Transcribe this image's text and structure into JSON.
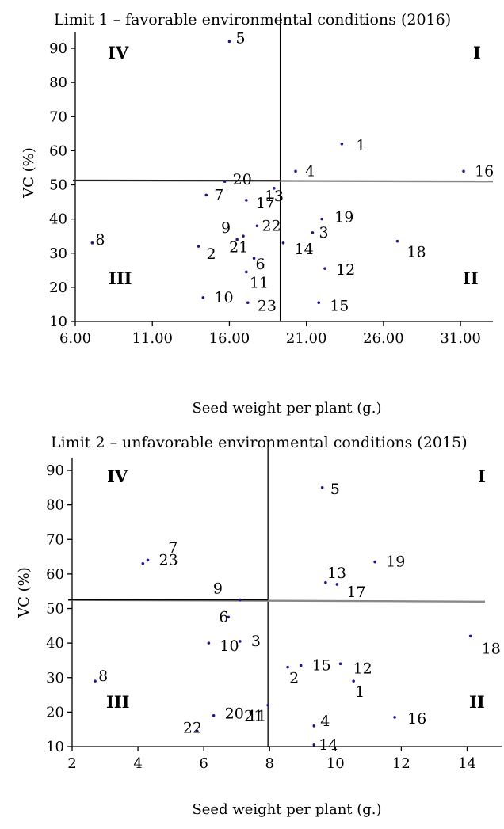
{
  "chart_data": [
    {
      "type": "scatter",
      "title": "Limit 1 – favorable environmental conditions (2016)",
      "xlabel": "Seed weight per plant (g.)",
      "ylabel": "VC (%)",
      "xlim": [
        6.0,
        33.0
      ],
      "ylim": [
        10,
        95
      ],
      "x_ticks": [
        6,
        11,
        16,
        21,
        26,
        31
      ],
      "x_tick_labels": [
        "6.00",
        "11.00",
        "16.00",
        "21.00",
        "26.00",
        "31.00"
      ],
      "y_ticks": [
        10,
        20,
        30,
        40,
        50,
        60,
        70,
        80,
        90
      ],
      "y_tick_labels": [
        "10",
        "20",
        "30",
        "40",
        "50",
        "60",
        "70",
        "80",
        "90"
      ],
      "vline_x": 19.3,
      "hline_y": [
        51.3,
        51.0
      ],
      "quadrants": [
        "I",
        "II",
        "III",
        "IV"
      ],
      "points": [
        {
          "label": "1",
          "x": 23.3,
          "y": 62.0
        },
        {
          "label": "2",
          "x": 14.0,
          "y": 32.0
        },
        {
          "label": "3",
          "x": 21.4,
          "y": 36.0
        },
        {
          "label": "4",
          "x": 20.3,
          "y": 54.0
        },
        {
          "label": "5",
          "x": 16.0,
          "y": 92.0
        },
        {
          "label": "6",
          "x": 17.6,
          "y": 28.5
        },
        {
          "label": "7",
          "x": 14.5,
          "y": 47.0
        },
        {
          "label": "8",
          "x": 7.1,
          "y": 33.0
        },
        {
          "label": "9",
          "x": 16.9,
          "y": 35.0
        },
        {
          "label": "10",
          "x": 14.3,
          "y": 17.0
        },
        {
          "label": "11",
          "x": 17.1,
          "y": 24.5
        },
        {
          "label": "12",
          "x": 22.2,
          "y": 25.5
        },
        {
          "label": "13",
          "x": 18.9,
          "y": 49.0
        },
        {
          "label": "14",
          "x": 19.5,
          "y": 33.0
        },
        {
          "label": "15",
          "x": 21.8,
          "y": 15.5
        },
        {
          "label": "16",
          "x": 31.2,
          "y": 54.0
        },
        {
          "label": "17",
          "x": 17.1,
          "y": 45.5
        },
        {
          "label": "18",
          "x": 26.9,
          "y": 33.5
        },
        {
          "label": "19",
          "x": 22.0,
          "y": 40.0
        },
        {
          "label": "20",
          "x": 15.7,
          "y": 51.0
        },
        {
          "label": "21",
          "x": 16.5,
          "y": 34.0
        },
        {
          "label": "22",
          "x": 17.8,
          "y": 38.0
        },
        {
          "label": "23",
          "x": 17.2,
          "y": 15.5
        }
      ]
    },
    {
      "type": "scatter",
      "title": "Limit 2 – unfavorable environmental conditions (2015)",
      "xlabel": "Seed weight per plant (g.)",
      "ylabel": "VC (%)",
      "xlim": [
        2.0,
        15.0
      ],
      "ylim": [
        10,
        95
      ],
      "x_ticks": [
        2,
        4,
        6,
        8,
        10,
        12,
        14
      ],
      "x_tick_labels": [
        "2",
        "4",
        "6",
        "8",
        "10",
        "12",
        "14"
      ],
      "y_ticks": [
        10,
        20,
        30,
        40,
        50,
        60,
        70,
        80,
        90
      ],
      "y_tick_labels": [
        "10",
        "20",
        "30",
        "40",
        "50",
        "60",
        "70",
        "80",
        "90"
      ],
      "vline_x": 7.95,
      "hline_y": [
        52.5,
        52.0
      ],
      "quadrants": [
        "I",
        "II",
        "III",
        "IV"
      ],
      "points": [
        {
          "label": "1",
          "x": 10.55,
          "y": 29.0
        },
        {
          "label": "2",
          "x": 8.55,
          "y": 33.0
        },
        {
          "label": "3",
          "x": 7.1,
          "y": 40.5
        },
        {
          "label": "4",
          "x": 9.35,
          "y": 16.0
        },
        {
          "label": "5",
          "x": 9.6,
          "y": 85.0
        },
        {
          "label": "6",
          "x": 6.75,
          "y": 47.5
        },
        {
          "label": "7",
          "x": 4.15,
          "y": 63.0
        },
        {
          "label": "8",
          "x": 2.7,
          "y": 29.0
        },
        {
          "label": "9",
          "x": 7.1,
          "y": 52.5
        },
        {
          "label": "10",
          "x": 6.15,
          "y": 40.0
        },
        {
          "label": "11",
          "x": 7.95,
          "y": 22.0
        },
        {
          "label": "12",
          "x": 10.15,
          "y": 34.0
        },
        {
          "label": "13",
          "x": 9.7,
          "y": 57.5
        },
        {
          "label": "14",
          "x": 9.35,
          "y": 10.5
        },
        {
          "label": "15",
          "x": 8.95,
          "y": 33.5
        },
        {
          "label": "16",
          "x": 11.8,
          "y": 18.5
        },
        {
          "label": "17",
          "x": 10.05,
          "y": 57.0
        },
        {
          "label": "18",
          "x": 14.1,
          "y": 42.0
        },
        {
          "label": "19",
          "x": 11.2,
          "y": 63.5
        },
        {
          "label": "20",
          "x": 6.3,
          "y": 19.0
        },
        {
          "label": "21",
          "x": 7.95,
          "y": 22.0
        },
        {
          "label": "22",
          "x": 5.8,
          "y": 14.5
        },
        {
          "label": "23",
          "x": 4.3,
          "y": 64.0
        }
      ]
    }
  ]
}
